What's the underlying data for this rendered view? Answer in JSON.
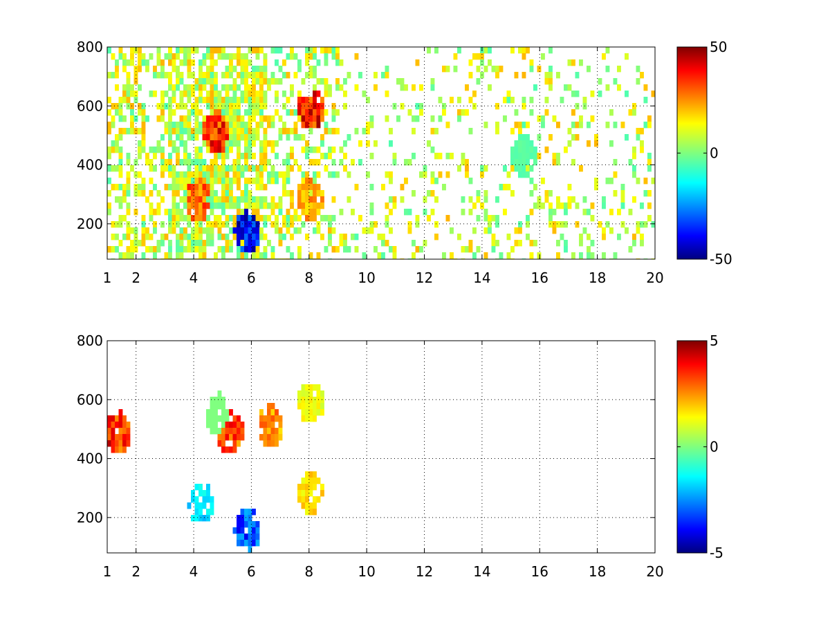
{
  "chart_data": [
    {
      "type": "heatmap",
      "title": "",
      "xlabel": "",
      "ylabel": "",
      "xlim": [
        1,
        20
      ],
      "ylim": [
        80,
        800
      ],
      "x_ticks": [
        1,
        2,
        4,
        6,
        8,
        10,
        12,
        14,
        16,
        18,
        20
      ],
      "y_ticks": [
        200,
        400,
        600,
        800
      ],
      "grid": true,
      "colormap": "jet",
      "clim": [
        -50,
        50
      ],
      "colorbar_ticks": [
        50,
        0,
        -50
      ],
      "tick_labels": {
        "x": [
          "1",
          "2",
          "4",
          "6",
          "8",
          "10",
          "12",
          "14",
          "16",
          "18",
          "20"
        ],
        "y": [
          "200",
          "400",
          "600",
          "800"
        ],
        "colorbar": [
          "50",
          "0",
          "-50"
        ]
      },
      "features": [
        {
          "x": 4.7,
          "y": 520,
          "value": 45
        },
        {
          "x": 4.1,
          "y": 290,
          "value": 35
        },
        {
          "x": 8.0,
          "y": 600,
          "value": 48
        },
        {
          "x": 8.0,
          "y": 290,
          "value": 28
        },
        {
          "x": 5.8,
          "y": 180,
          "value": -50
        },
        {
          "x": 15.4,
          "y": 440,
          "value": -5
        }
      ]
    },
    {
      "type": "heatmap",
      "title": "",
      "xlabel": "",
      "ylabel": "",
      "xlim": [
        1,
        20
      ],
      "ylim": [
        80,
        800
      ],
      "x_ticks": [
        1,
        2,
        4,
        6,
        8,
        10,
        12,
        14,
        16,
        18,
        20
      ],
      "y_ticks": [
        200,
        400,
        600,
        800
      ],
      "grid": true,
      "colormap": "jet",
      "clim": [
        -5,
        5
      ],
      "colorbar_ticks": [
        5,
        0,
        -5
      ],
      "tick_labels": {
        "x": [
          "1",
          "2",
          "4",
          "6",
          "8",
          "10",
          "12",
          "14",
          "16",
          "18",
          "20"
        ],
        "y": [
          "200",
          "400",
          "600",
          "800"
        ],
        "colorbar": [
          "5",
          "0",
          "-5"
        ]
      },
      "features": [
        {
          "x": 5.2,
          "y": 500,
          "value": 4
        },
        {
          "x": 4.8,
          "y": 560,
          "value": 0
        },
        {
          "x": 8.0,
          "y": 600,
          "value": 1.5
        },
        {
          "x": 8.0,
          "y": 290,
          "value": 2
        },
        {
          "x": 5.8,
          "y": 170,
          "value": -4
        },
        {
          "x": 4.2,
          "y": 260,
          "value": -2
        },
        {
          "x": 6.6,
          "y": 520,
          "value": 3
        },
        {
          "x": 1.3,
          "y": 500,
          "value": 4.5
        }
      ]
    }
  ]
}
